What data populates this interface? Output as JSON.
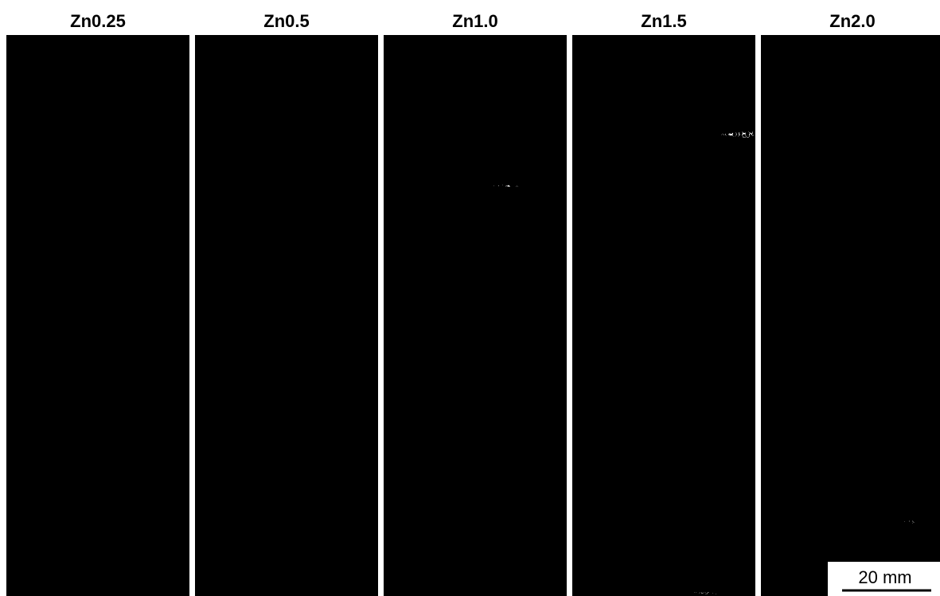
{
  "panels": [
    {
      "label": "Zn0.25"
    },
    {
      "label": "Zn0.5"
    },
    {
      "label": "Zn1.0"
    },
    {
      "label": "Zn1.5"
    },
    {
      "label": "Zn2.0"
    }
  ],
  "scale_bar": {
    "label": "20 mm"
  }
}
